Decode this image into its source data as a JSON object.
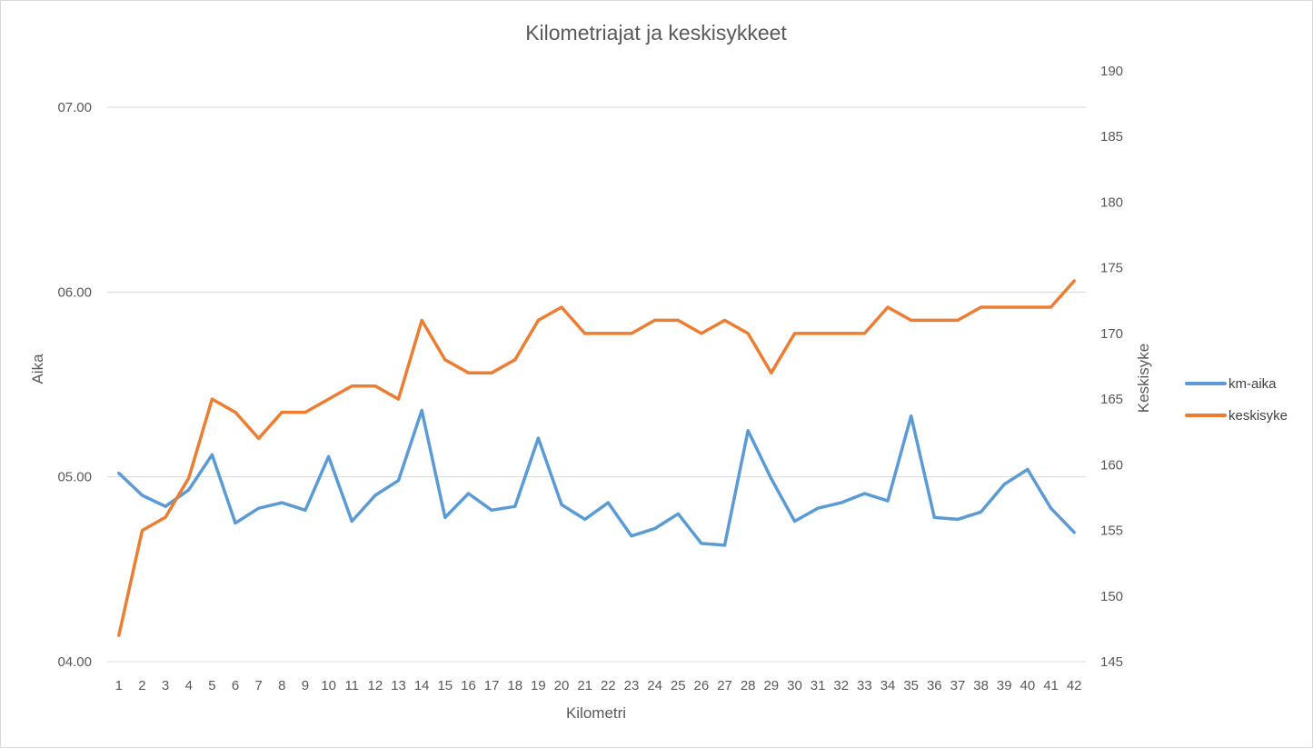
{
  "chart_data": {
    "type": "line",
    "title": "Kilometriajat ja keskisykkeet",
    "xlabel": "Kilometri",
    "ylabel_left": "Aika",
    "ylabel_right": "Keskisyke",
    "categories": [
      "1",
      "2",
      "3",
      "4",
      "5",
      "6",
      "7",
      "8",
      "9",
      "10",
      "11",
      "12",
      "13",
      "14",
      "15",
      "16",
      "17",
      "18",
      "19",
      "20",
      "21",
      "22",
      "23",
      "24",
      "25",
      "26",
      "27",
      "28",
      "29",
      "30",
      "31",
      "32",
      "33",
      "34",
      "35",
      "36",
      "37",
      "38",
      "39",
      "40",
      "41",
      "42"
    ],
    "y_left": {
      "min": 4.0,
      "max": 7.0,
      "ticks": [
        4.0,
        5.0,
        6.0,
        7.0
      ],
      "tick_labels": [
        "04.00",
        "05.00",
        "06.00",
        "07.00"
      ]
    },
    "y_right": {
      "min": 145,
      "max": 190,
      "ticks": [
        145,
        150,
        155,
        160,
        165,
        170,
        175,
        180,
        185,
        190
      ],
      "tick_labels": [
        "145",
        "150",
        "155",
        "160",
        "165",
        "170",
        "175",
        "180",
        "185",
        "190"
      ]
    },
    "grid": "horizontal-left-axis",
    "legend_position": "right",
    "series": [
      {
        "name": "km-aika",
        "axis": "left",
        "color": "#5B9BD5",
        "values": [
          5.02,
          4.9,
          4.84,
          4.93,
          5.12,
          4.75,
          4.83,
          4.86,
          4.82,
          5.11,
          4.76,
          4.9,
          4.98,
          5.36,
          4.78,
          4.91,
          4.82,
          4.84,
          5.21,
          4.85,
          4.77,
          4.86,
          4.68,
          4.72,
          4.8,
          4.64,
          4.63,
          5.25,
          4.99,
          4.76,
          4.83,
          4.86,
          4.91,
          4.87,
          5.33,
          4.78,
          4.77,
          4.81,
          4.96,
          5.04,
          4.83,
          4.7
        ]
      },
      {
        "name": "keskisyke",
        "axis": "right",
        "color": "#ED7D31",
        "values": [
          147,
          155,
          156,
          159,
          165,
          164,
          162,
          164,
          164,
          165,
          166,
          166,
          165,
          171,
          168,
          167,
          167,
          168,
          171,
          172,
          170,
          170,
          170,
          171,
          171,
          170,
          171,
          170,
          167,
          170,
          170,
          170,
          170,
          172,
          171,
          171,
          171,
          172,
          172,
          172,
          172,
          174
        ]
      }
    ]
  }
}
